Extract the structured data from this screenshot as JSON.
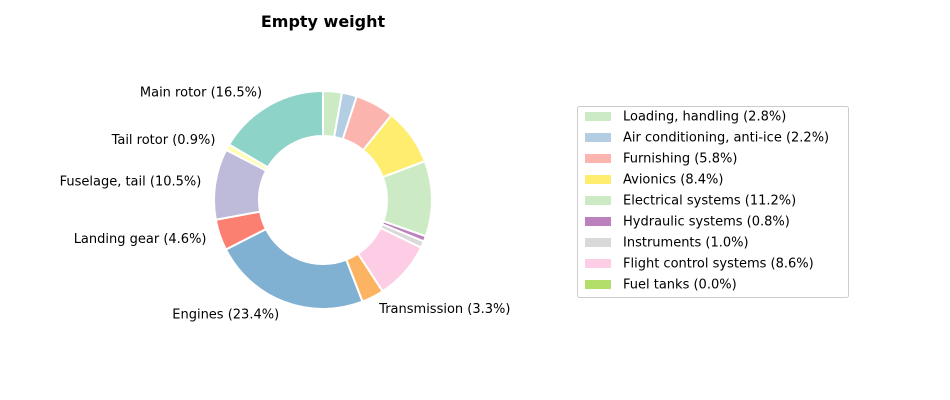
{
  "chart_data": {
    "type": "pie",
    "subtype": "donut",
    "title": "Empty weight",
    "slices": [
      {
        "label": "Loading, handling (2.8%)",
        "value": 2.8,
        "color": "#ccebc5",
        "in_legend": true,
        "outer_label": false
      },
      {
        "label": "Air conditioning, anti-ice (2.2%)",
        "value": 2.2,
        "color": "#b3cde3",
        "in_legend": true,
        "outer_label": false
      },
      {
        "label": "Furnishing (5.8%)",
        "value": 5.8,
        "color": "#fbb4ae",
        "in_legend": true,
        "outer_label": false
      },
      {
        "label": "Avionics (8.4%)",
        "value": 8.4,
        "color": "#ffed6f",
        "in_legend": true,
        "outer_label": false
      },
      {
        "label": "Electrical systems (11.2%)",
        "value": 11.2,
        "color": "#ccebc5",
        "in_legend": true,
        "outer_label": false
      },
      {
        "label": "Hydraulic systems (0.8%)",
        "value": 0.8,
        "color": "#bc80bd",
        "in_legend": true,
        "outer_label": false
      },
      {
        "label": "Instruments (1.0%)",
        "value": 1.0,
        "color": "#d9d9d9",
        "in_legend": true,
        "outer_label": false
      },
      {
        "label": "Flight control systems (8.6%)",
        "value": 8.6,
        "color": "#fccde5",
        "in_legend": true,
        "outer_label": false
      },
      {
        "label": "Transmission (3.3%)",
        "value": 3.3,
        "color": "#fdb462",
        "in_legend": false,
        "outer_label": true
      },
      {
        "label": "Engines (23.4%)",
        "value": 23.4,
        "color": "#80b1d3",
        "in_legend": false,
        "outer_label": true
      },
      {
        "label": "Landing gear (4.6%)",
        "value": 4.6,
        "color": "#fb8072",
        "in_legend": false,
        "outer_label": true
      },
      {
        "label": "Fuselage, tail (10.5%)",
        "value": 10.5,
        "color": "#bebada",
        "in_legend": false,
        "outer_label": true
      },
      {
        "label": "Tail rotor (0.9%)",
        "value": 0.9,
        "color": "#ffffb3",
        "in_legend": false,
        "outer_label": true
      },
      {
        "label": "Main rotor (16.5%)",
        "value": 16.5,
        "color": "#8dd3c7",
        "in_legend": false,
        "outer_label": true
      },
      {
        "label": "Fuel tanks (0.0%)",
        "value": 0.0,
        "color": "#b3de69",
        "in_legend": true,
        "outer_label": false
      }
    ],
    "start_angle_deg": 90,
    "direction": "clockwise",
    "legend_placement": "right"
  }
}
